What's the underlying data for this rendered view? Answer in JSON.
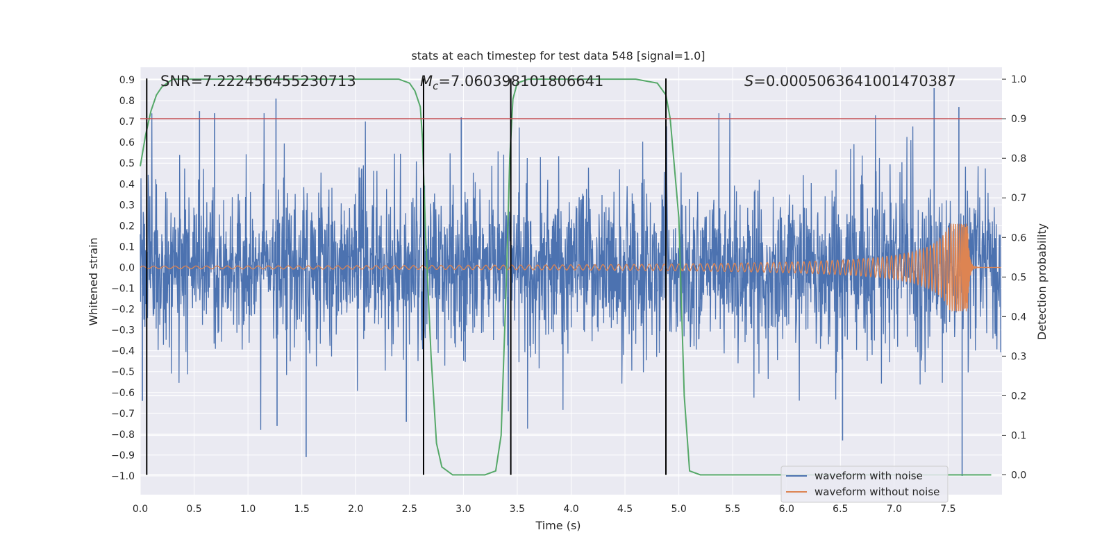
{
  "chart_data": {
    "type": "line",
    "title": "stats at each timestep for test data 548 [signal=1.0]",
    "xlabel": "Time (s)",
    "ylabel": "Whitened strain",
    "y2label": "Detection probability",
    "xlim": [
      0.0,
      8.0
    ],
    "ylim": [
      -1.09,
      0.96
    ],
    "y2lim": [
      -0.05,
      1.03
    ],
    "x_ticks": [
      0.0,
      0.5,
      1.0,
      1.5,
      2.0,
      2.5,
      3.0,
      3.5,
      4.0,
      4.5,
      5.0,
      5.5,
      6.0,
      6.5,
      7.0,
      7.5
    ],
    "y_ticks": [
      -1.0,
      -0.9,
      -0.8,
      -0.7,
      -0.6,
      -0.5,
      -0.4,
      -0.3,
      -0.2,
      -0.1,
      0.0,
      0.1,
      0.2,
      0.3,
      0.4,
      0.5,
      0.6,
      0.7,
      0.8,
      0.9
    ],
    "y2_ticks": [
      0.0,
      0.1,
      0.2,
      0.3,
      0.4,
      0.5,
      0.6,
      0.7,
      0.8,
      0.9,
      1.0
    ],
    "threshold": 0.9,
    "event_lines": [
      0.06,
      2.63,
      3.44,
      4.88
    ],
    "annotations": {
      "snr": "SNR=7.222456455230713",
      "mc_symbol": "M",
      "mc_sub": "c",
      "mc_value": "=7.060398101806641",
      "s_symbol": "S",
      "s_value": "=0.0005063641001470387"
    },
    "series": [
      {
        "name": "waveform with noise",
        "color": "#4c72b0",
        "description": "whitened strain, noise envelope roughly -0.3..0.3 with spikes to ~0.85 / -1.0",
        "peaks": [
          {
            "x": 0.02,
            "y": -0.64
          },
          {
            "x": 0.55,
            "y": 0.75
          },
          {
            "x": 0.69,
            "y": 0.74
          },
          {
            "x": 1.26,
            "y": 0.81
          },
          {
            "x": 1.27,
            "y": -0.76
          },
          {
            "x": 1.54,
            "y": -0.91
          },
          {
            "x": 2.47,
            "y": -0.74
          },
          {
            "x": 2.98,
            "y": 0.72
          },
          {
            "x": 6.52,
            "y": -0.83
          },
          {
            "x": 7.37,
            "y": 0.86
          },
          {
            "x": 7.6,
            "y": 0.77
          },
          {
            "x": 7.63,
            "y": -1.0
          }
        ]
      },
      {
        "name": "waveform without noise",
        "color": "#dd8452",
        "description": "chirp signal, amplitude grows from ~0.005 to ~0.2 at merger (~7.68 s), then ringdown to 0",
        "merger_time": 7.68,
        "peak_amplitude": 0.21
      },
      {
        "name": "detection probability",
        "axis": "right",
        "color": "#55a868",
        "x": [
          0.0,
          0.05,
          0.1,
          0.15,
          0.2,
          0.25,
          0.3,
          0.4,
          0.6,
          1.0,
          2.0,
          2.4,
          2.5,
          2.55,
          2.6,
          2.62,
          2.65,
          2.7,
          2.75,
          2.8,
          2.9,
          3.0,
          3.2,
          3.3,
          3.35,
          3.4,
          3.43,
          3.46,
          3.5,
          3.6,
          4.0,
          4.6,
          4.8,
          4.88,
          4.92,
          5.0,
          5.05,
          5.1,
          5.2,
          6.0,
          7.0,
          7.9
        ],
        "y": [
          0.78,
          0.86,
          0.92,
          0.96,
          0.98,
          0.99,
          1.0,
          1.0,
          1.0,
          1.0,
          1.0,
          1.0,
          0.99,
          0.97,
          0.93,
          0.85,
          0.6,
          0.3,
          0.08,
          0.02,
          0.0,
          0.0,
          0.0,
          0.01,
          0.1,
          0.5,
          0.8,
          0.95,
          0.99,
          1.0,
          1.0,
          1.0,
          0.99,
          0.96,
          0.9,
          0.65,
          0.2,
          0.01,
          0.0,
          0.0,
          0.0,
          0.0
        ]
      }
    ],
    "legend": {
      "position": "lower-right",
      "entries": [
        {
          "label": "waveform with noise",
          "color": "#4c72b0"
        },
        {
          "label": "waveform without noise",
          "color": "#dd8452"
        }
      ]
    },
    "colors": {
      "plot_bg": "#eaeaf2",
      "grid": "#ffffff",
      "threshold": "#c44e52",
      "event_line": "#000000",
      "text": "#262626"
    }
  }
}
